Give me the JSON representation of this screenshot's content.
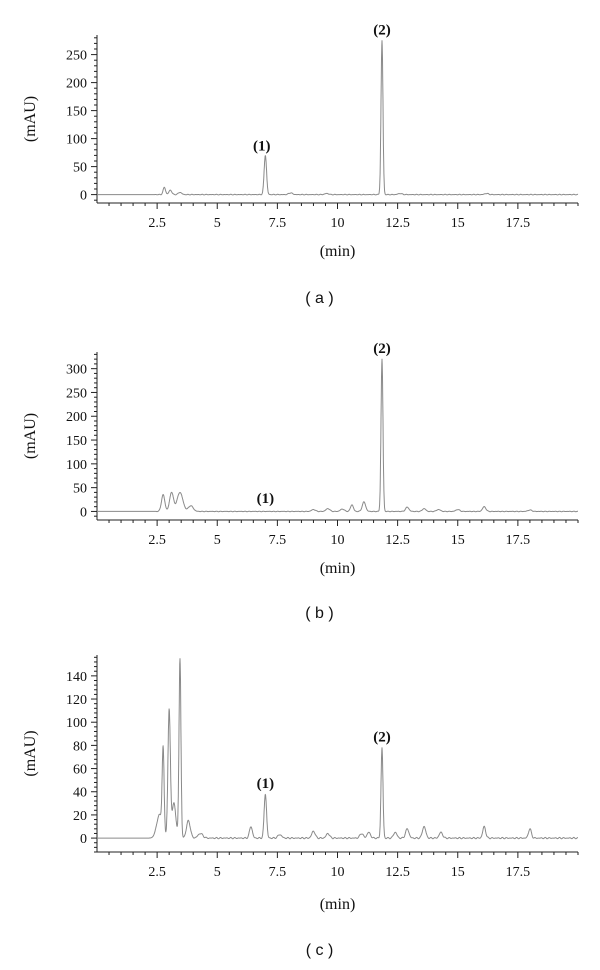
{
  "chart_data": [
    {
      "type": "line",
      "panel_label": "( a )",
      "xlabel": "(min)",
      "ylabel": "(mAU)",
      "xlim": [
        0,
        20
      ],
      "ylim": [
        -15,
        285
      ],
      "xticks": [
        2.5,
        5,
        7.5,
        10,
        12.5,
        15,
        17.5
      ],
      "yticks": [
        0,
        50,
        100,
        150,
        200,
        250
      ],
      "baseline": 0,
      "peaks": [
        {
          "t": 2.8,
          "h": 13,
          "w": 0.05
        },
        {
          "t": 3.05,
          "h": 8,
          "w": 0.06
        },
        {
          "t": 3.45,
          "h": 4,
          "w": 0.07
        },
        {
          "t": 7.0,
          "h": 70,
          "w": 0.05
        },
        {
          "t": 8.05,
          "h": 3,
          "w": 0.08
        },
        {
          "t": 9.55,
          "h": 2,
          "w": 0.08
        },
        {
          "t": 11.85,
          "h": 275,
          "w": 0.04
        },
        {
          "t": 12.6,
          "h": 2,
          "w": 0.08
        },
        {
          "t": 16.2,
          "h": 2,
          "w": 0.08
        }
      ],
      "annotations": [
        {
          "text": "(1)",
          "x": 6.85,
          "y": 68
        },
        {
          "text": "(2)",
          "x": 11.85,
          "y": 275
        }
      ]
    },
    {
      "type": "line",
      "panel_label": "( b )",
      "xlabel": "(min)",
      "ylabel": "(mAU)",
      "xlim": [
        0,
        20
      ],
      "ylim": [
        -18,
        335
      ],
      "xticks": [
        2.5,
        5,
        7.5,
        10,
        12.5,
        15,
        17.5
      ],
      "yticks": [
        0,
        50,
        100,
        150,
        200,
        250,
        300
      ],
      "baseline": 0,
      "peaks": [
        {
          "t": 2.75,
          "h": 35,
          "w": 0.07
        },
        {
          "t": 3.1,
          "h": 40,
          "w": 0.08
        },
        {
          "t": 3.45,
          "h": 40,
          "w": 0.12
        },
        {
          "t": 3.9,
          "h": 12,
          "w": 0.1
        },
        {
          "t": 9.0,
          "h": 4,
          "w": 0.08
        },
        {
          "t": 9.6,
          "h": 6,
          "w": 0.08
        },
        {
          "t": 10.2,
          "h": 5,
          "w": 0.08
        },
        {
          "t": 10.6,
          "h": 14,
          "w": 0.06
        },
        {
          "t": 11.1,
          "h": 20,
          "w": 0.07
        },
        {
          "t": 11.85,
          "h": 320,
          "w": 0.04
        },
        {
          "t": 12.9,
          "h": 9,
          "w": 0.07
        },
        {
          "t": 13.6,
          "h": 6,
          "w": 0.07
        },
        {
          "t": 14.2,
          "h": 4,
          "w": 0.08
        },
        {
          "t": 15.0,
          "h": 4,
          "w": 0.08
        },
        {
          "t": 16.1,
          "h": 10,
          "w": 0.07
        },
        {
          "t": 18.0,
          "h": 3,
          "w": 0.08
        }
      ],
      "annotations": [
        {
          "text": "(1)",
          "x": 7.0,
          "y": 5
        },
        {
          "text": "(2)",
          "x": 11.85,
          "y": 320
        }
      ]
    },
    {
      "type": "line",
      "panel_label": "( c )",
      "xlabel": "(min)",
      "ylabel": "(mAU)",
      "xlim": [
        0,
        20
      ],
      "ylim": [
        -12,
        158
      ],
      "xticks": [
        2.5,
        5,
        7.5,
        10,
        12.5,
        15,
        17.5
      ],
      "yticks": [
        0,
        20,
        40,
        60,
        80,
        100,
        120,
        140
      ],
      "baseline": 0,
      "peaks": [
        {
          "t": 2.6,
          "h": 20,
          "w": 0.12
        },
        {
          "t": 2.75,
          "h": 70,
          "w": 0.04
        },
        {
          "t": 3.0,
          "h": 110,
          "w": 0.05
        },
        {
          "t": 3.2,
          "h": 30,
          "w": 0.08
        },
        {
          "t": 3.45,
          "h": 155,
          "w": 0.04
        },
        {
          "t": 3.8,
          "h": 15,
          "w": 0.08
        },
        {
          "t": 4.3,
          "h": 4,
          "w": 0.1
        },
        {
          "t": 6.4,
          "h": 10,
          "w": 0.06
        },
        {
          "t": 7.0,
          "h": 38,
          "w": 0.05
        },
        {
          "t": 7.6,
          "h": 3,
          "w": 0.08
        },
        {
          "t": 9.0,
          "h": 6,
          "w": 0.07
        },
        {
          "t": 9.6,
          "h": 4,
          "w": 0.07
        },
        {
          "t": 11.0,
          "h": 4,
          "w": 0.07
        },
        {
          "t": 11.3,
          "h": 5,
          "w": 0.07
        },
        {
          "t": 11.85,
          "h": 78,
          "w": 0.04
        },
        {
          "t": 12.4,
          "h": 5,
          "w": 0.07
        },
        {
          "t": 12.9,
          "h": 8,
          "w": 0.07
        },
        {
          "t": 13.6,
          "h": 10,
          "w": 0.07
        },
        {
          "t": 14.3,
          "h": 5,
          "w": 0.07
        },
        {
          "t": 16.1,
          "h": 10,
          "w": 0.06
        },
        {
          "t": 18.0,
          "h": 8,
          "w": 0.06
        }
      ],
      "annotations": [
        {
          "text": "(1)",
          "x": 7.0,
          "y": 38
        },
        {
          "text": "(2)",
          "x": 11.85,
          "y": 78
        }
      ]
    }
  ]
}
